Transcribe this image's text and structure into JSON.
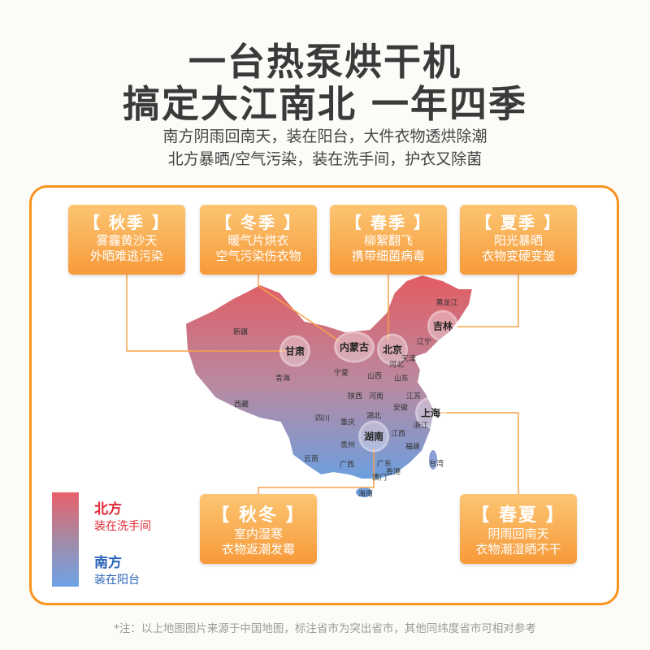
{
  "headline": {
    "line1": "一台热泵烘干机",
    "line2": "搞定大江南北  一年四季"
  },
  "subtitle": {
    "line1": "南方阴雨回南天，装在阳台，大件衣物透烘除潮",
    "line2": "北方暴晒/空气污染，装在洗手间，护衣又除菌"
  },
  "cards": [
    {
      "title": "【 秋季 】",
      "l1": "雾霾黄沙天",
      "l2": "外晒难逃污染"
    },
    {
      "title": "【 冬季 】",
      "l1": "暖气片烘衣",
      "l2": "空气污染伤衣物"
    },
    {
      "title": "【 春季 】",
      "l1": "柳絮翻飞",
      "l2": "携带细菌病毒"
    },
    {
      "title": "【 夏季 】",
      "l1": "阳光暴晒",
      "l2": "衣物变硬变皱"
    },
    {
      "title": "【 秋冬 】",
      "l1": "室内湿寒",
      "l2": "衣物返潮发霉"
    },
    {
      "title": "【 春夏 】",
      "l1": "阴雨回南天",
      "l2": "衣物潮湿晒不干"
    }
  ],
  "provinces": [
    "新疆",
    "甘肃",
    "内蒙古",
    "北京",
    "黑龙江",
    "吉林",
    "辽宁",
    "天津",
    "河北",
    "宁夏",
    "山西",
    "山东",
    "青海",
    "陕西",
    "河南",
    "江苏",
    "西藏",
    "安徽",
    "上海",
    "四川",
    "湖北",
    "重庆",
    "浙江",
    "湖南",
    "江西",
    "贵州",
    "福建",
    "云南",
    "广西",
    "广东",
    "台湾",
    "香港",
    "澳门",
    "海南"
  ],
  "highlighted": [
    "甘肃",
    "内蒙古",
    "北京",
    "吉林",
    "上海",
    "湖南"
  ],
  "legend": {
    "north_title": "北方",
    "north_text": "装在洗手间",
    "south_title": "南方",
    "south_text": "装在阳台",
    "north_color": "#e8606a",
    "south_color": "#6ea3e6"
  },
  "colors": {
    "accent": "#f7941d"
  },
  "note": "*注：以上地图图片来源于中国地图，标注省市为突出省市，其他同纬度省市可相对参考"
}
